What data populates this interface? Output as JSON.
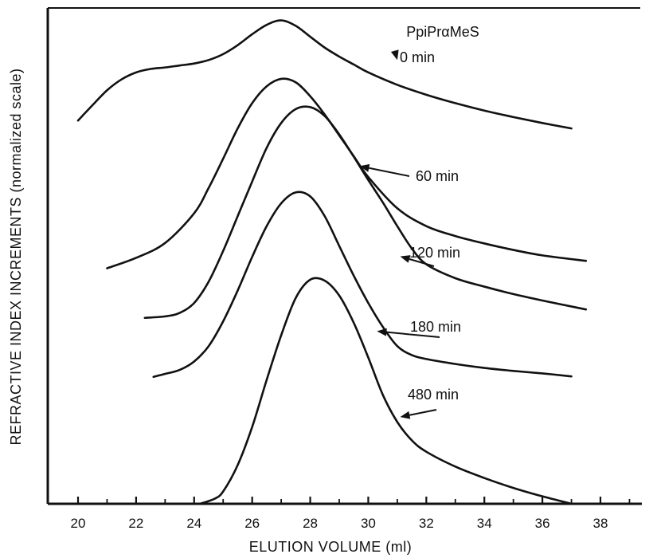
{
  "chart_data": {
    "type": "line",
    "title": "",
    "xlabel": "ELUTION VOLUME (ml)",
    "ylabel": "REFRACTIVE INDEX INCREMENTS (normalized scale)",
    "legend_title": "PpiPrαMeS",
    "xlim": [
      19,
      39.5
    ],
    "ylim": [
      0,
      1
    ],
    "x_ticks": [
      "20",
      "22",
      "24",
      "26",
      "28",
      "30",
      "32",
      "34",
      "36",
      "38"
    ],
    "grid": false,
    "series": [
      {
        "name": "0 min",
        "label_anchor": [
          31.0,
          0.895
        ],
        "points": [
          [
            20.0,
            0.773
          ],
          [
            20.5,
            0.804
          ],
          [
            21.0,
            0.834
          ],
          [
            21.5,
            0.856
          ],
          [
            22.0,
            0.87
          ],
          [
            22.5,
            0.877
          ],
          [
            23.0,
            0.88
          ],
          [
            23.5,
            0.884
          ],
          [
            24.0,
            0.888
          ],
          [
            24.5,
            0.895
          ],
          [
            25.0,
            0.907
          ],
          [
            25.5,
            0.925
          ],
          [
            26.0,
            0.947
          ],
          [
            26.5,
            0.966
          ],
          [
            27.0,
            0.975
          ],
          [
            27.5,
            0.964
          ],
          [
            28.0,
            0.942
          ],
          [
            28.5,
            0.92
          ],
          [
            29.0,
            0.902
          ],
          [
            29.5,
            0.886
          ],
          [
            30.0,
            0.87
          ],
          [
            31.0,
            0.845
          ],
          [
            32.0,
            0.825
          ],
          [
            33.0,
            0.808
          ],
          [
            34.0,
            0.793
          ],
          [
            35.0,
            0.78
          ],
          [
            36.0,
            0.768
          ],
          [
            37.0,
            0.757
          ]
        ]
      },
      {
        "name": "60 min",
        "label_anchor": [
          29.7,
          0.681
        ],
        "points": [
          [
            21.0,
            0.475
          ],
          [
            22.0,
            0.496
          ],
          [
            23.0,
            0.526
          ],
          [
            24.0,
            0.586
          ],
          [
            24.5,
            0.637
          ],
          [
            25.0,
            0.696
          ],
          [
            25.5,
            0.757
          ],
          [
            26.0,
            0.808
          ],
          [
            26.5,
            0.842
          ],
          [
            27.0,
            0.857
          ],
          [
            27.5,
            0.85
          ],
          [
            28.0,
            0.822
          ],
          [
            28.5,
            0.785
          ],
          [
            29.0,
            0.743
          ],
          [
            29.5,
            0.701
          ],
          [
            30.0,
            0.659
          ],
          [
            31.0,
            0.596
          ],
          [
            32.0,
            0.56
          ],
          [
            33.0,
            0.54
          ],
          [
            34.0,
            0.525
          ],
          [
            35.0,
            0.512
          ],
          [
            36.0,
            0.501
          ],
          [
            37.5,
            0.49
          ]
        ]
      },
      {
        "name": "120 min",
        "label_anchor": [
          31.1,
          0.499
        ],
        "points": [
          [
            22.3,
            0.375
          ],
          [
            23.0,
            0.378
          ],
          [
            23.5,
            0.385
          ],
          [
            24.0,
            0.405
          ],
          [
            24.5,
            0.448
          ],
          [
            25.0,
            0.51
          ],
          [
            25.5,
            0.58
          ],
          [
            26.0,
            0.65
          ],
          [
            26.5,
            0.718
          ],
          [
            27.0,
            0.768
          ],
          [
            27.5,
            0.796
          ],
          [
            28.0,
            0.8
          ],
          [
            28.5,
            0.782
          ],
          [
            29.0,
            0.745
          ],
          [
            29.5,
            0.7
          ],
          [
            30.0,
            0.653
          ],
          [
            30.5,
            0.608
          ],
          [
            31.0,
            0.56
          ],
          [
            31.5,
            0.515
          ],
          [
            32.0,
            0.483
          ],
          [
            33.0,
            0.455
          ],
          [
            34.0,
            0.438
          ],
          [
            35.0,
            0.423
          ],
          [
            36.0,
            0.41
          ],
          [
            37.5,
            0.392
          ]
        ]
      },
      {
        "name": "180 min",
        "label_anchor": [
          30.3,
          0.348
        ],
        "points": [
          [
            22.6,
            0.256
          ],
          [
            23.0,
            0.262
          ],
          [
            23.5,
            0.27
          ],
          [
            24.0,
            0.287
          ],
          [
            24.5,
            0.318
          ],
          [
            25.0,
            0.368
          ],
          [
            25.5,
            0.43
          ],
          [
            26.0,
            0.498
          ],
          [
            26.5,
            0.56
          ],
          [
            27.0,
            0.606
          ],
          [
            27.5,
            0.628
          ],
          [
            28.0,
            0.62
          ],
          [
            28.5,
            0.58
          ],
          [
            29.0,
            0.52
          ],
          [
            29.5,
            0.46
          ],
          [
            30.0,
            0.405
          ],
          [
            30.5,
            0.357
          ],
          [
            31.0,
            0.318
          ],
          [
            31.5,
            0.3
          ],
          [
            32.0,
            0.292
          ],
          [
            33.0,
            0.282
          ],
          [
            34.0,
            0.274
          ],
          [
            35.0,
            0.268
          ],
          [
            36.0,
            0.263
          ],
          [
            37.0,
            0.257
          ]
        ]
      },
      {
        "name": "480 min",
        "label_anchor": [
          31.1,
          0.175
        ],
        "points": [
          [
            24.2,
            0.0
          ],
          [
            24.7,
            0.01
          ],
          [
            25.0,
            0.025
          ],
          [
            25.5,
            0.078
          ],
          [
            26.0,
            0.155
          ],
          [
            26.5,
            0.25
          ],
          [
            27.0,
            0.34
          ],
          [
            27.5,
            0.415
          ],
          [
            28.0,
            0.452
          ],
          [
            28.5,
            0.45
          ],
          [
            29.0,
            0.42
          ],
          [
            29.5,
            0.365
          ],
          [
            30.0,
            0.295
          ],
          [
            30.5,
            0.22
          ],
          [
            31.0,
            0.165
          ],
          [
            31.5,
            0.128
          ],
          [
            32.0,
            0.105
          ],
          [
            33.0,
            0.075
          ],
          [
            34.0,
            0.052
          ],
          [
            35.0,
            0.032
          ],
          [
            36.0,
            0.015
          ],
          [
            37.0,
            0.0
          ]
        ]
      }
    ]
  }
}
